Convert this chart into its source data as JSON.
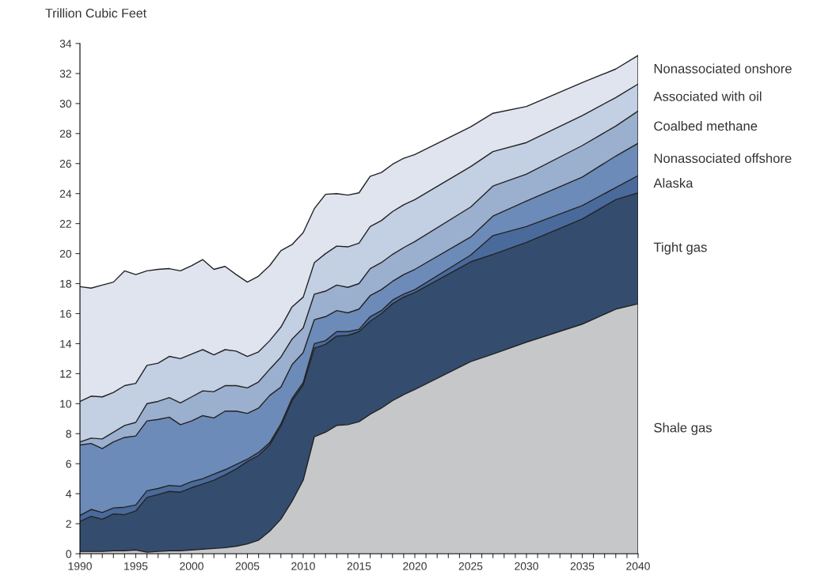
{
  "chart_data": {
    "type": "area",
    "stacked": true,
    "ylabel": "Trillion Cubic Feet",
    "legend": false,
    "grid": false,
    "x": [
      1990,
      1991,
      1992,
      1993,
      1994,
      1995,
      1996,
      1997,
      1998,
      1999,
      2000,
      2001,
      2002,
      2003,
      2004,
      2005,
      2006,
      2007,
      2008,
      2009,
      2010,
      2011,
      2012,
      2013,
      2014,
      2015,
      2016,
      2017,
      2018,
      2019,
      2020,
      2025,
      2027,
      2030,
      2035,
      2038,
      2040
    ],
    "xlim": [
      1990,
      2040
    ],
    "ylim": [
      0,
      34
    ],
    "yticks": [
      0,
      2,
      4,
      6,
      8,
      10,
      12,
      14,
      16,
      18,
      20,
      22,
      24,
      26,
      28,
      30,
      32,
      34
    ],
    "xticks": [
      1990,
      {
        "value": 1991,
        "label": null
      },
      {
        "value": 1992,
        "label": null
      },
      {
        "value": 1993,
        "label": null
      },
      {
        "value": 1994,
        "label": null
      },
      1995,
      {
        "value": 1996,
        "label": null
      },
      {
        "value": 1997,
        "label": null
      },
      {
        "value": 1998,
        "label": null
      },
      {
        "value": 1999,
        "label": null
      },
      2000,
      {
        "value": 2001,
        "label": null
      },
      {
        "value": 2002,
        "label": null
      },
      {
        "value": 2003,
        "label": null
      },
      {
        "value": 2004,
        "label": null
      },
      2005,
      {
        "value": 2006,
        "label": null
      },
      {
        "value": 2007,
        "label": null
      },
      {
        "value": 2008,
        "label": null
      },
      {
        "value": 2009,
        "label": null
      },
      2010,
      {
        "value": 2011,
        "label": null
      },
      {
        "value": 2012,
        "label": null
      },
      {
        "value": 2013,
        "label": null
      },
      {
        "value": 2014,
        "label": null
      },
      2015,
      {
        "value": 2016,
        "label": null
      },
      {
        "value": 2017,
        "label": null
      },
      {
        "value": 2018,
        "label": null
      },
      {
        "value": 2019,
        "label": null
      },
      2020,
      {
        "value": 2021,
        "label": null
      },
      {
        "value": 2022,
        "label": null
      },
      {
        "value": 2023,
        "label": null
      },
      {
        "value": 2024,
        "label": null
      },
      2025,
      {
        "value": 2026,
        "label": null
      },
      {
        "value": 2027,
        "label": null
      },
      {
        "value": 2028,
        "label": null
      },
      {
        "value": 2029,
        "label": null
      },
      2030,
      {
        "value": 2031,
        "label": null
      },
      {
        "value": 2032,
        "label": null
      },
      {
        "value": 2033,
        "label": null
      },
      {
        "value": 2034,
        "label": null
      },
      2035,
      {
        "value": 2036,
        "label": null
      },
      {
        "value": 2037,
        "label": null
      },
      {
        "value": 2038,
        "label": null
      },
      {
        "value": 2039,
        "label": null
      },
      2040
    ],
    "series": [
      {
        "name": "Shale gas",
        "color": "#c6c7c9",
        "values": [
          0.15,
          0.15,
          0.15,
          0.2,
          0.2,
          0.25,
          0.1,
          0.15,
          0.2,
          0.2,
          0.25,
          0.3,
          0.35,
          0.4,
          0.5,
          0.65,
          0.9,
          1.5,
          2.3,
          3.5,
          4.9,
          7.8,
          8.1,
          8.55,
          8.6,
          8.8,
          9.3,
          9.7,
          10.2,
          10.6,
          10.95,
          12.8,
          13.3,
          14.1,
          15.3,
          16.3,
          16.65
        ]
      },
      {
        "name": "Tight gas",
        "color": "#344d6e",
        "values": [
          2.0,
          2.35,
          2.15,
          2.45,
          2.4,
          2.6,
          3.65,
          3.8,
          3.95,
          3.9,
          4.15,
          4.35,
          4.55,
          4.85,
          5.15,
          5.5,
          5.65,
          5.75,
          6.2,
          6.7,
          6.35,
          5.9,
          5.85,
          5.95,
          5.95,
          6.0,
          6.2,
          6.3,
          6.45,
          6.5,
          6.45,
          6.65,
          6.65,
          6.65,
          7.0,
          7.3,
          7.4
        ]
      },
      {
        "name": "Alaska",
        "color": "#4a6a9c",
        "values": [
          0.4,
          0.45,
          0.45,
          0.4,
          0.5,
          0.4,
          0.45,
          0.4,
          0.4,
          0.4,
          0.4,
          0.35,
          0.4,
          0.35,
          0.3,
          0.15,
          0.2,
          0.15,
          0.15,
          0.15,
          0.15,
          0.3,
          0.25,
          0.3,
          0.25,
          0.15,
          0.3,
          0.2,
          0.25,
          0.2,
          0.2,
          0.45,
          1.25,
          1.05,
          0.9,
          0.8,
          1.15
        ]
      },
      {
        "name": "Nonassociated offshore",
        "color": "#6c8bb8",
        "values": [
          4.7,
          4.4,
          4.25,
          4.4,
          4.65,
          4.6,
          4.65,
          4.6,
          4.55,
          4.1,
          4.05,
          4.2,
          3.75,
          3.9,
          3.55,
          3.05,
          2.95,
          3.15,
          2.45,
          2.25,
          2.0,
          1.6,
          1.6,
          1.4,
          1.25,
          1.35,
          1.4,
          1.4,
          1.25,
          1.3,
          1.35,
          1.2,
          1.3,
          1.7,
          1.9,
          2.1,
          2.15
        ]
      },
      {
        "name": "Coalbed methane",
        "color": "#9bafcf",
        "values": [
          0.2,
          0.35,
          0.65,
          0.65,
          0.8,
          0.9,
          1.15,
          1.2,
          1.3,
          1.45,
          1.6,
          1.65,
          1.75,
          1.7,
          1.7,
          1.7,
          1.75,
          1.75,
          2.0,
          1.7,
          1.65,
          1.7,
          1.7,
          1.7,
          1.7,
          1.7,
          1.8,
          1.8,
          1.8,
          1.8,
          1.85,
          2.0,
          2.0,
          1.8,
          2.1,
          2.0,
          2.15
        ]
      },
      {
        "name": "Associated with oil",
        "color": "#c3cfe3",
        "values": [
          2.7,
          2.8,
          2.8,
          2.65,
          2.65,
          2.6,
          2.55,
          2.55,
          2.75,
          2.95,
          2.85,
          2.75,
          2.45,
          2.4,
          2.3,
          2.1,
          2.0,
          1.9,
          2.0,
          2.15,
          2.05,
          2.1,
          2.5,
          2.6,
          2.7,
          2.7,
          2.8,
          2.8,
          2.85,
          2.85,
          2.8,
          2.7,
          2.3,
          2.1,
          2.0,
          1.9,
          1.8
        ]
      },
      {
        "name": "Nonassociated onshore",
        "color": "#dfe4ef",
        "values": [
          7.65,
          7.2,
          7.45,
          7.35,
          7.65,
          7.25,
          6.3,
          6.25,
          5.85,
          5.85,
          5.9,
          6.0,
          5.7,
          5.55,
          5.1,
          4.95,
          5.05,
          5.0,
          5.1,
          4.15,
          4.3,
          3.6,
          3.95,
          3.5,
          3.45,
          3.35,
          3.35,
          3.2,
          3.15,
          3.1,
          3.0,
          2.65,
          2.55,
          2.4,
          2.2,
          1.9,
          1.9
        ]
      }
    ]
  }
}
